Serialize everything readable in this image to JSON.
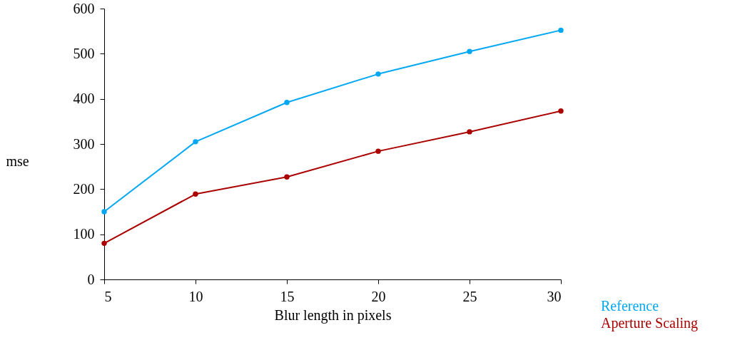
{
  "chart_data": {
    "type": "line",
    "xlabel": "Blur length in pixels",
    "ylabel": "mse",
    "x": [
      5,
      10,
      15,
      20,
      25,
      30
    ],
    "series": [
      {
        "name": "Reference",
        "color": "#00a8f3",
        "values": [
          150,
          305,
          392,
          455,
          505,
          552
        ]
      },
      {
        "name": "Aperture Scaling",
        "color": "#aa0000",
        "values": [
          80,
          189,
          227,
          284,
          327,
          373
        ]
      }
    ],
    "xlim": [
      5,
      30
    ],
    "xticks": [
      5,
      10,
      15,
      20,
      25,
      30
    ],
    "ylim": [
      0,
      600
    ],
    "yticks": [
      0,
      100,
      200,
      300,
      400,
      500,
      600
    ],
    "grid": false,
    "legend": "bottom right",
    "marker": "circle",
    "line_style": "solid"
  }
}
